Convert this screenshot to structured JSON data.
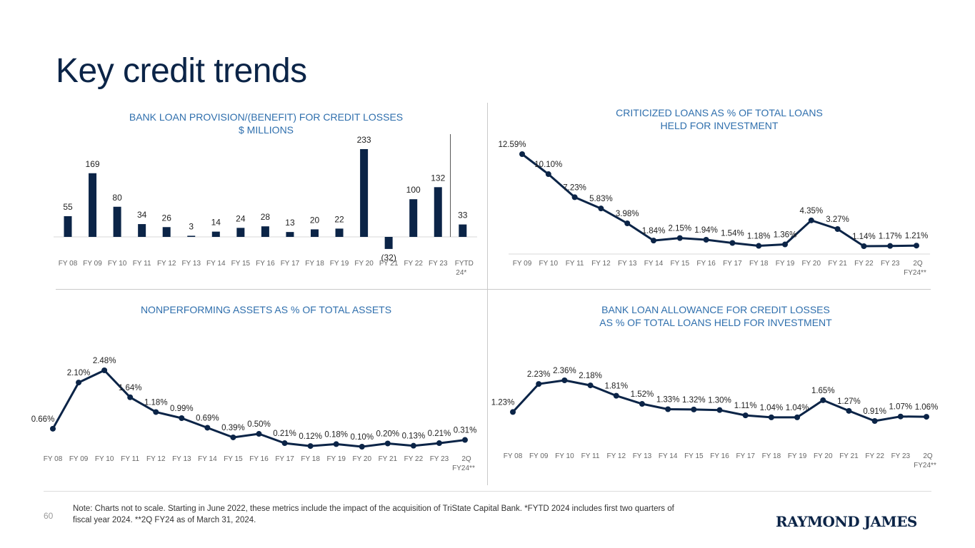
{
  "page": {
    "title": "Key credit trends",
    "page_number": "60",
    "note_line1": "Note: Charts not to scale.  Starting in June 2022, these metrics include the impact of the acquisition of TriState Capital Bank. *FYTD 2024 includes first two quarters of",
    "note_line2": "fiscal year 2024. **2Q FY24 as of March 31, 2024.",
    "logo_text": "RAYMOND JAMES"
  },
  "colors": {
    "series": "#0b2447",
    "title": "#2f6fad",
    "tick": "#666666",
    "divider": "#c9c9c9"
  },
  "chart_data": [
    {
      "id": "provision",
      "type": "bar",
      "title_line1": "BANK LOAN PROVISION/(BENEFIT) FOR CREDIT LOSSES",
      "title_line2": "$ MILLIONS",
      "categories": [
        "FY 08",
        "FY 09",
        "FY 10",
        "FY 11",
        "FY 12",
        "FY 13",
        "FY 14",
        "FY 15",
        "FY 16",
        "FY 17",
        "FY 18",
        "FY 19",
        "FY 20",
        "FY 21",
        "FY 22",
        "FY 23",
        "FYTD 24*"
      ],
      "values": [
        55,
        169,
        80,
        34,
        26,
        3,
        14,
        24,
        28,
        13,
        20,
        22,
        233,
        -32,
        100,
        132,
        33
      ],
      "labels": [
        "55",
        "169",
        "80",
        "34",
        "26",
        "3",
        "14",
        "24",
        "28",
        "13",
        "20",
        "22",
        "233",
        "(32)",
        "100",
        "132",
        "33"
      ],
      "separator_before_last": true
    },
    {
      "id": "criticized",
      "type": "line",
      "title_line1": "CRITICIZED LOANS AS % OF TOTAL LOANS",
      "title_line2": "HELD FOR INVESTMENT",
      "categories": [
        "FY 09",
        "FY 10",
        "FY 11",
        "FY 12",
        "FY 13",
        "FY 14",
        "FY 15",
        "FY 16",
        "FY 17",
        "FY 18",
        "FY 19",
        "FY 20",
        "FY 21",
        "FY 22",
        "FY 23",
        "2Q FY24**"
      ],
      "values": [
        12.59,
        10.1,
        7.23,
        5.83,
        3.98,
        1.84,
        2.15,
        1.94,
        1.54,
        1.18,
        1.36,
        4.35,
        3.27,
        1.14,
        1.17,
        1.21
      ],
      "labels": [
        "12.59%",
        "10.10%",
        "7.23%",
        "5.83%",
        "3.98%",
        "1.84%",
        "2.15%",
        "1.94%",
        "1.54%",
        "1.18%",
        "1.36%",
        "4.35%",
        "3.27%",
        "1.14%",
        "1.17%",
        "1.21%"
      ]
    },
    {
      "id": "npa",
      "type": "line",
      "title_line1": "NONPERFORMING ASSETS AS % OF TOTAL ASSETS",
      "title_line2": "",
      "categories": [
        "FY 08",
        "FY 09",
        "FY 10",
        "FY 11",
        "FY 12",
        "FY 13",
        "FY 14",
        "FY 15",
        "FY 16",
        "FY 17",
        "FY 18",
        "FY 19",
        "FY 20",
        "FY 21",
        "FY 22",
        "FY 23",
        "2Q FY24**"
      ],
      "values": [
        0.66,
        2.1,
        2.48,
        1.64,
        1.18,
        0.99,
        0.69,
        0.39,
        0.5,
        0.21,
        0.12,
        0.18,
        0.1,
        0.2,
        0.13,
        0.21,
        0.31
      ],
      "labels": [
        "0.66%",
        "2.10%",
        "2.48%",
        "1.64%",
        "1.18%",
        "0.99%",
        "0.69%",
        "0.39%",
        "0.50%",
        "0.21%",
        "0.12%",
        "0.18%",
        "0.10%",
        "0.20%",
        "0.13%",
        "0.21%",
        "0.31%"
      ]
    },
    {
      "id": "allowance",
      "type": "line",
      "title_line1": "BANK LOAN ALLOWANCE FOR CREDIT LOSSES",
      "title_line2": "AS % OF TOTAL LOANS HELD FOR INVESTMENT",
      "categories": [
        "FY 08",
        "FY 09",
        "FY 10",
        "FY 11",
        "FY 12",
        "FY 13",
        "FY 14",
        "FY 15",
        "FY 16",
        "FY 17",
        "FY 18",
        "FY 19",
        "FY 20",
        "FY 21",
        "FY 22",
        "FY 23",
        "2Q FY24**"
      ],
      "values": [
        1.23,
        2.23,
        2.36,
        2.18,
        1.81,
        1.52,
        1.33,
        1.32,
        1.3,
        1.11,
        1.04,
        1.04,
        1.65,
        1.27,
        0.91,
        1.07,
        1.06
      ],
      "labels": [
        "1.23%",
        "2.23%",
        "2.36%",
        "2.18%",
        "1.81%",
        "1.52%",
        "1.33%",
        "1.32%",
        "1.30%",
        "1.11%",
        "1.04%",
        "1.04%",
        "1.65%",
        "1.27%",
        "0.91%",
        "1.07%",
        "1.06%"
      ]
    }
  ]
}
